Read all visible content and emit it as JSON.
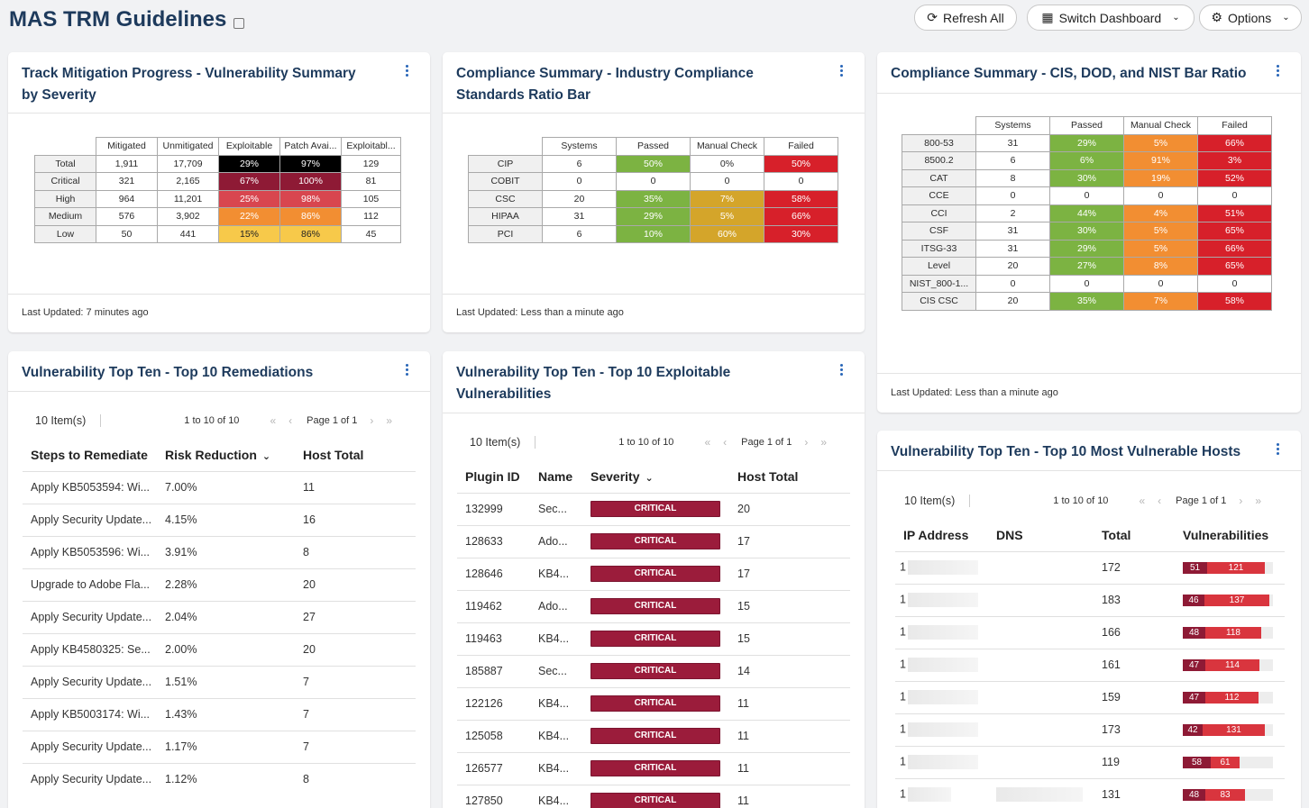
{
  "page": {
    "title": "MAS TRM Guidelines"
  },
  "toolbar": {
    "refresh_label": "Refresh All",
    "switch_label": "Switch Dashboard",
    "options_label": "Options"
  },
  "colors": {
    "green": "#7cb342",
    "orange": "#f28e32",
    "red": "#d7202a",
    "mustard": "#d4a52a",
    "black": "#000000",
    "darkred": "#8e1a35",
    "critical": "#9b1c3b",
    "link": "#1f6cc4"
  },
  "card1": {
    "title": "Track Mitigation Progress - Vulnerability Summary by Severity",
    "headers": [
      "Mitigated",
      "Unmitigated",
      "Exploitable",
      "Patch Avai...",
      "Exploitabl..."
    ],
    "rows": [
      {
        "label": "Total",
        "v": [
          "1,911",
          "17,709",
          "29%",
          "97%",
          "129"
        ]
      },
      {
        "label": "Critical",
        "v": [
          "321",
          "2,165",
          "67%",
          "100%",
          "81"
        ]
      },
      {
        "label": "High",
        "v": [
          "964",
          "11,201",
          "25%",
          "98%",
          "105"
        ]
      },
      {
        "label": "Medium",
        "v": [
          "576",
          "3,902",
          "22%",
          "86%",
          "112"
        ]
      },
      {
        "label": "Low",
        "v": [
          "50",
          "441",
          "15%",
          "86%",
          "45"
        ]
      }
    ],
    "footer": "Last Updated: 7 minutes ago"
  },
  "card2": {
    "title": "Compliance Summary - Industry Compliance Standards Ratio Bar",
    "headers": [
      "Systems",
      "Passed",
      "Manual Check",
      "Failed"
    ],
    "rows": [
      {
        "label": "CIP",
        "v": [
          "6",
          "50%",
          "0%",
          "50%"
        ]
      },
      {
        "label": "COBIT",
        "v": [
          "0",
          "0",
          "0",
          "0"
        ]
      },
      {
        "label": "CSC",
        "v": [
          "20",
          "35%",
          "7%",
          "58%"
        ]
      },
      {
        "label": "HIPAA",
        "v": [
          "31",
          "29%",
          "5%",
          "66%"
        ]
      },
      {
        "label": "PCI",
        "v": [
          "6",
          "10%",
          "60%",
          "30%"
        ]
      }
    ],
    "footer": "Last Updated: Less than a minute ago"
  },
  "card3": {
    "title": "Compliance Summary - CIS, DOD, and NIST Bar Ratio",
    "headers": [
      "Systems",
      "Passed",
      "Manual Check",
      "Failed"
    ],
    "rows": [
      {
        "label": "800-53",
        "v": [
          "31",
          "29%",
          "5%",
          "66%"
        ]
      },
      {
        "label": "8500.2",
        "v": [
          "6",
          "6%",
          "91%",
          "3%"
        ]
      },
      {
        "label": "CAT",
        "v": [
          "8",
          "30%",
          "19%",
          "52%"
        ]
      },
      {
        "label": "CCE",
        "v": [
          "0",
          "0",
          "0",
          "0"
        ]
      },
      {
        "label": "CCI",
        "v": [
          "2",
          "44%",
          "4%",
          "51%"
        ]
      },
      {
        "label": "CSF",
        "v": [
          "31",
          "30%",
          "5%",
          "65%"
        ]
      },
      {
        "label": "ITSG-33",
        "v": [
          "31",
          "29%",
          "5%",
          "66%"
        ]
      },
      {
        "label": "Level",
        "v": [
          "20",
          "27%",
          "8%",
          "65%"
        ]
      },
      {
        "label": "NIST_800-1...",
        "v": [
          "0",
          "0",
          "0",
          "0"
        ]
      },
      {
        "label": "CIS CSC",
        "v": [
          "20",
          "35%",
          "7%",
          "58%"
        ]
      }
    ],
    "footer": "Last Updated: Less than a minute ago"
  },
  "card4": {
    "title": "Vulnerability Top Ten - Top 10 Remediations",
    "items": "10 Item(s)",
    "range": "1 to 10 of 10",
    "page": "Page 1 of 1",
    "headers": [
      "Steps to Remediate",
      "Risk Reduction",
      "Host Total"
    ],
    "rows": [
      [
        "Apply KB5053594: Wi...",
        "7.00%",
        "11"
      ],
      [
        "Apply Security Update...",
        "4.15%",
        "16"
      ],
      [
        "Apply KB5053596: Wi...",
        "3.91%",
        "8"
      ],
      [
        "Upgrade to Adobe Fla...",
        "2.28%",
        "20"
      ],
      [
        "Apply Security Update...",
        "2.04%",
        "27"
      ],
      [
        "Apply KB4580325: Se...",
        "2.00%",
        "20"
      ],
      [
        "Apply Security Update...",
        "1.51%",
        "7"
      ],
      [
        "Apply KB5003174: Wi...",
        "1.43%",
        "7"
      ],
      [
        "Apply Security Update...",
        "1.17%",
        "7"
      ],
      [
        "Apply Security Update...",
        "1.12%",
        "8"
      ]
    ]
  },
  "card5": {
    "title": "Vulnerability Top Ten - Top 10 Exploitable Vulnerabilities",
    "items": "10 Item(s)",
    "range": "1 to 10 of 10",
    "page": "Page 1 of 1",
    "headers": [
      "Plugin ID",
      "Name",
      "Severity",
      "Host Total"
    ],
    "rows": [
      [
        "132999",
        "Sec...",
        "CRITICAL",
        "20"
      ],
      [
        "128633",
        "Ado...",
        "CRITICAL",
        "17"
      ],
      [
        "128646",
        "KB4...",
        "CRITICAL",
        "17"
      ],
      [
        "119462",
        "Ado...",
        "CRITICAL",
        "15"
      ],
      [
        "119463",
        "KB4...",
        "CRITICAL",
        "15"
      ],
      [
        "185887",
        "Sec...",
        "CRITICAL",
        "14"
      ],
      [
        "122126",
        "KB4...",
        "CRITICAL",
        "11"
      ],
      [
        "125058",
        "KB4...",
        "CRITICAL",
        "11"
      ],
      [
        "126577",
        "KB4...",
        "CRITICAL",
        "11"
      ],
      [
        "127850",
        "KB4...",
        "CRITICAL",
        "11"
      ]
    ]
  },
  "card6": {
    "title": "Vulnerability Top Ten - Top 10 Most Vulnerable Hosts",
    "items": "10 Item(s)",
    "range": "1 to 10 of 10",
    "page": "Page 1 of 1",
    "headers": [
      "IP Address",
      "DNS",
      "Total",
      "Vulnerabilities"
    ],
    "rows": [
      {
        "ip": "1",
        "total": "172",
        "critical": "51",
        "high": "121"
      },
      {
        "ip": "1",
        "total": "183",
        "critical": "46",
        "high": "137"
      },
      {
        "ip": "1",
        "total": "166",
        "critical": "48",
        "high": "118"
      },
      {
        "ip": "1",
        "total": "161",
        "critical": "47",
        "high": "114"
      },
      {
        "ip": "1",
        "total": "159",
        "critical": "47",
        "high": "112"
      },
      {
        "ip": "1",
        "total": "173",
        "critical": "42",
        "high": "131"
      },
      {
        "ip": "1",
        "total": "119",
        "critical": "58",
        "high": "61"
      },
      {
        "ip": "1",
        "total": "131",
        "critical": "48",
        "high": "83"
      }
    ]
  }
}
